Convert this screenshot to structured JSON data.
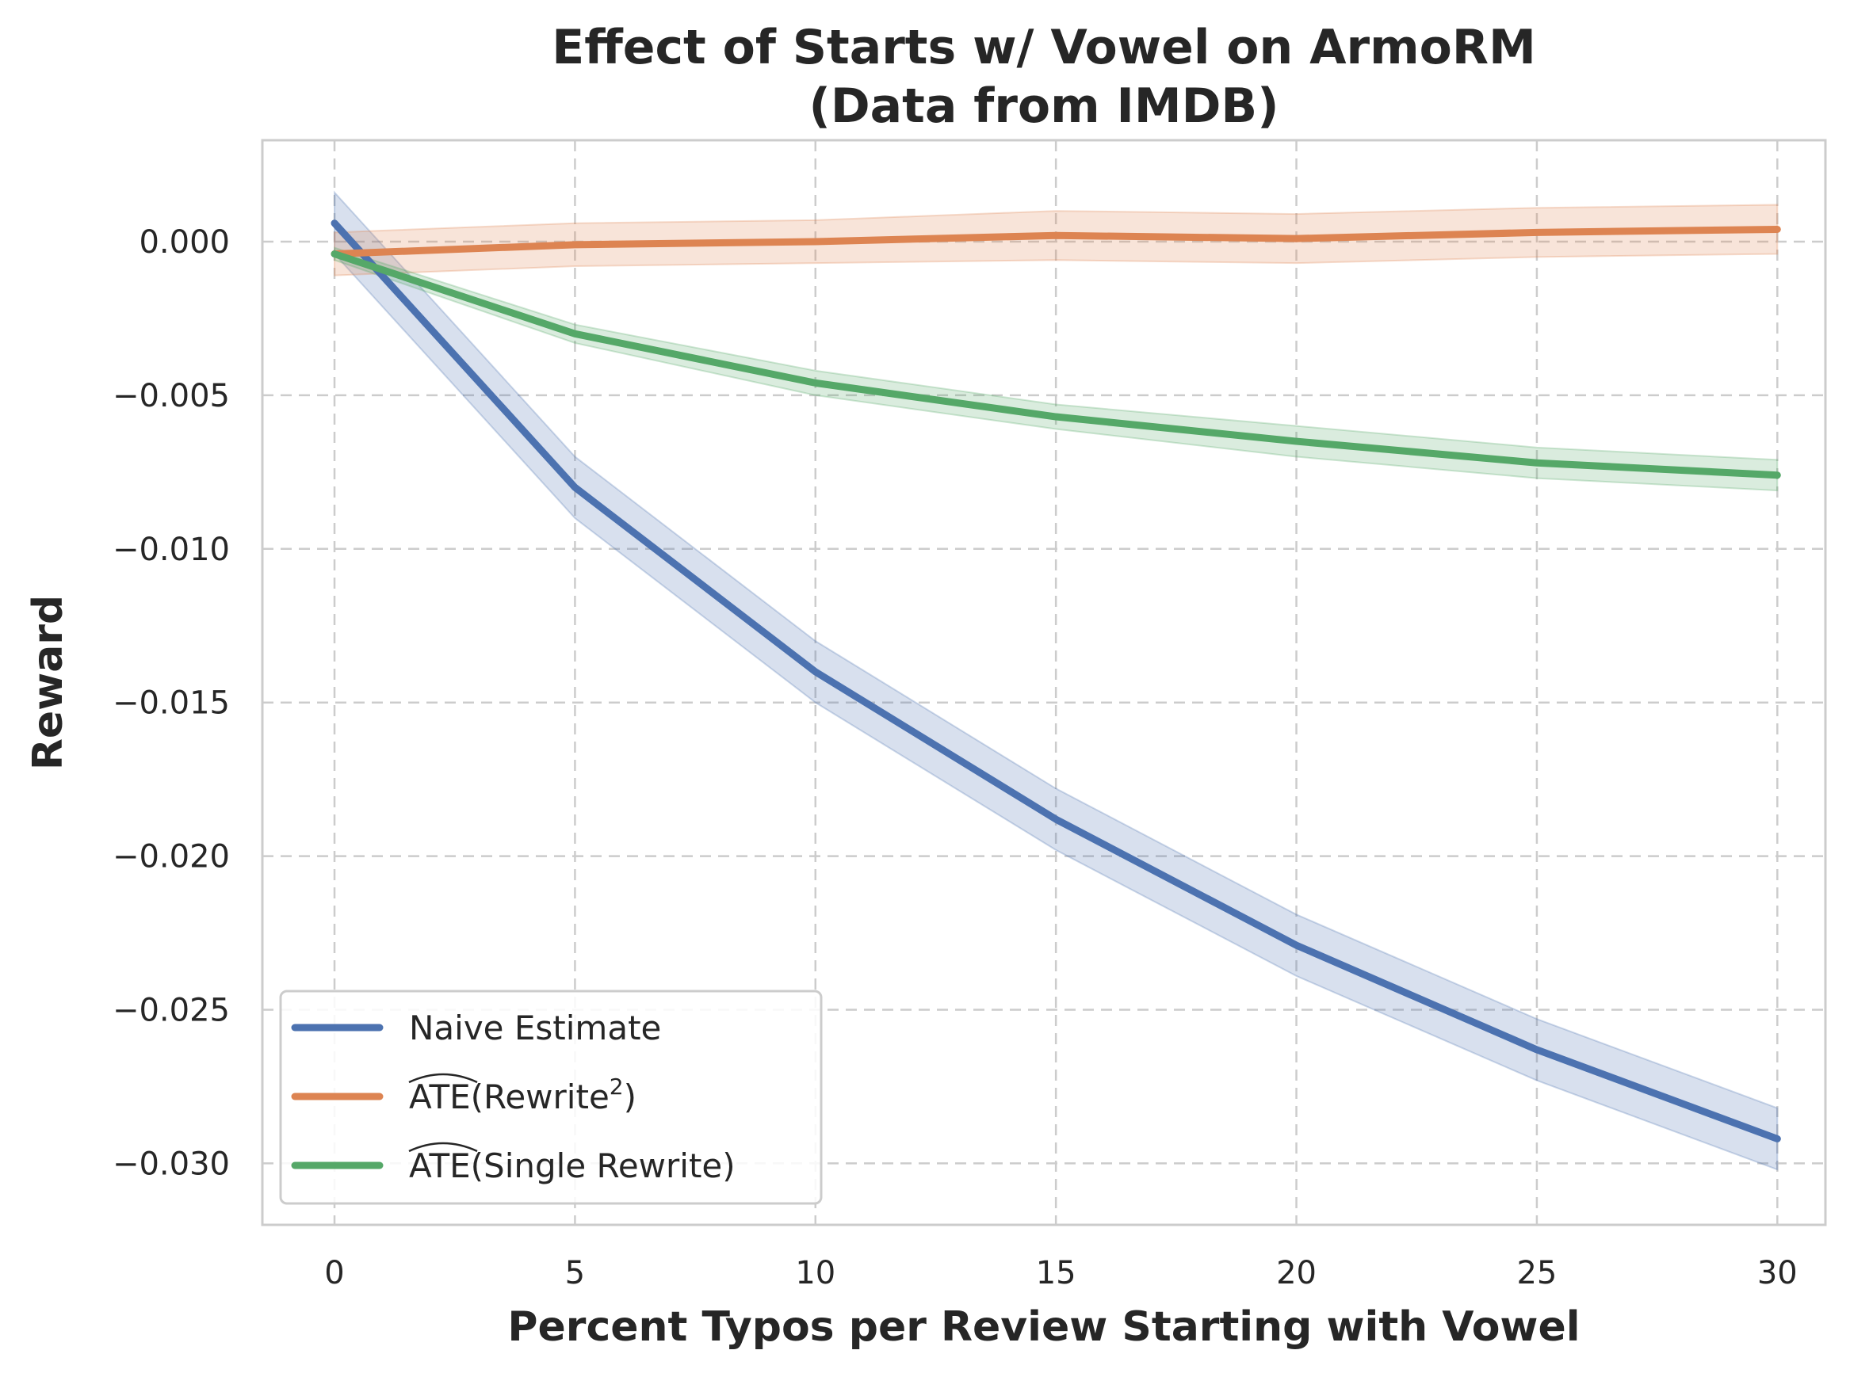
{
  "chart_data": {
    "type": "line",
    "title_lines": [
      "Effect of Starts w/ Vowel on ArmoRM",
      "(Data from IMDB)"
    ],
    "xlabel": "Percent Typos per Review Starting with Vowel",
    "ylabel": "Reward",
    "x": [
      0,
      5,
      10,
      15,
      20,
      25,
      30
    ],
    "x_ticks": [
      0,
      5,
      10,
      15,
      20,
      25,
      30
    ],
    "x_tick_labels": [
      "0",
      "5",
      "10",
      "15",
      "20",
      "25",
      "30"
    ],
    "y_ticks": [
      0.0,
      -0.005,
      -0.01,
      -0.015,
      -0.02,
      -0.025,
      -0.03
    ],
    "y_tick_labels": [
      "0.000",
      "−0.005",
      "−0.010",
      "−0.015",
      "−0.020",
      "−0.025",
      "−0.030"
    ],
    "xlim": [
      -1.5,
      31.0
    ],
    "ylim": [
      -0.032,
      0.0033
    ],
    "grid": true,
    "legend_position": "lower-left",
    "series": [
      {
        "name": "Naive Estimate",
        "legend_main": "Naive Estimate",
        "legend_sup": "",
        "legend_tail": "",
        "color": "#4c72b0",
        "values": [
          0.0006,
          -0.008,
          -0.014,
          -0.0188,
          -0.0229,
          -0.0263,
          -0.0292
        ],
        "lower": [
          -0.0004,
          -0.009,
          -0.015,
          -0.0198,
          -0.0239,
          -0.0273,
          -0.0302
        ],
        "upper": [
          0.0016,
          -0.007,
          -0.013,
          -0.0178,
          -0.0219,
          -0.0253,
          -0.0282
        ]
      },
      {
        "name": "ATE(Rewrite²)",
        "legend_main": "ATE(Rewrite",
        "legend_sup": "2",
        "legend_tail": ")",
        "color": "#dd8452",
        "values": [
          -0.0004,
          -0.0001,
          0.0,
          0.0002,
          0.0001,
          0.0003,
          0.0004
        ],
        "lower": [
          -0.0011,
          -0.0008,
          -0.0007,
          -0.0006,
          -0.0007,
          -0.0005,
          -0.0004
        ],
        "upper": [
          0.0003,
          0.0006,
          0.0007,
          0.001,
          0.0009,
          0.0011,
          0.0012
        ]
      },
      {
        "name": "ATE(Single Rewrite)",
        "legend_main": "ATE(Single Rewrite)",
        "legend_sup": "",
        "legend_tail": "",
        "color": "#55a868",
        "values": [
          -0.0004,
          -0.003,
          -0.0046,
          -0.0057,
          -0.0065,
          -0.0072,
          -0.0076
        ],
        "lower": [
          -0.0006,
          -0.0033,
          -0.005,
          -0.0061,
          -0.007,
          -0.0077,
          -0.0081
        ],
        "upper": [
          -0.0002,
          -0.0027,
          -0.0042,
          -0.0053,
          -0.006,
          -0.0067,
          -0.0071
        ]
      }
    ]
  }
}
